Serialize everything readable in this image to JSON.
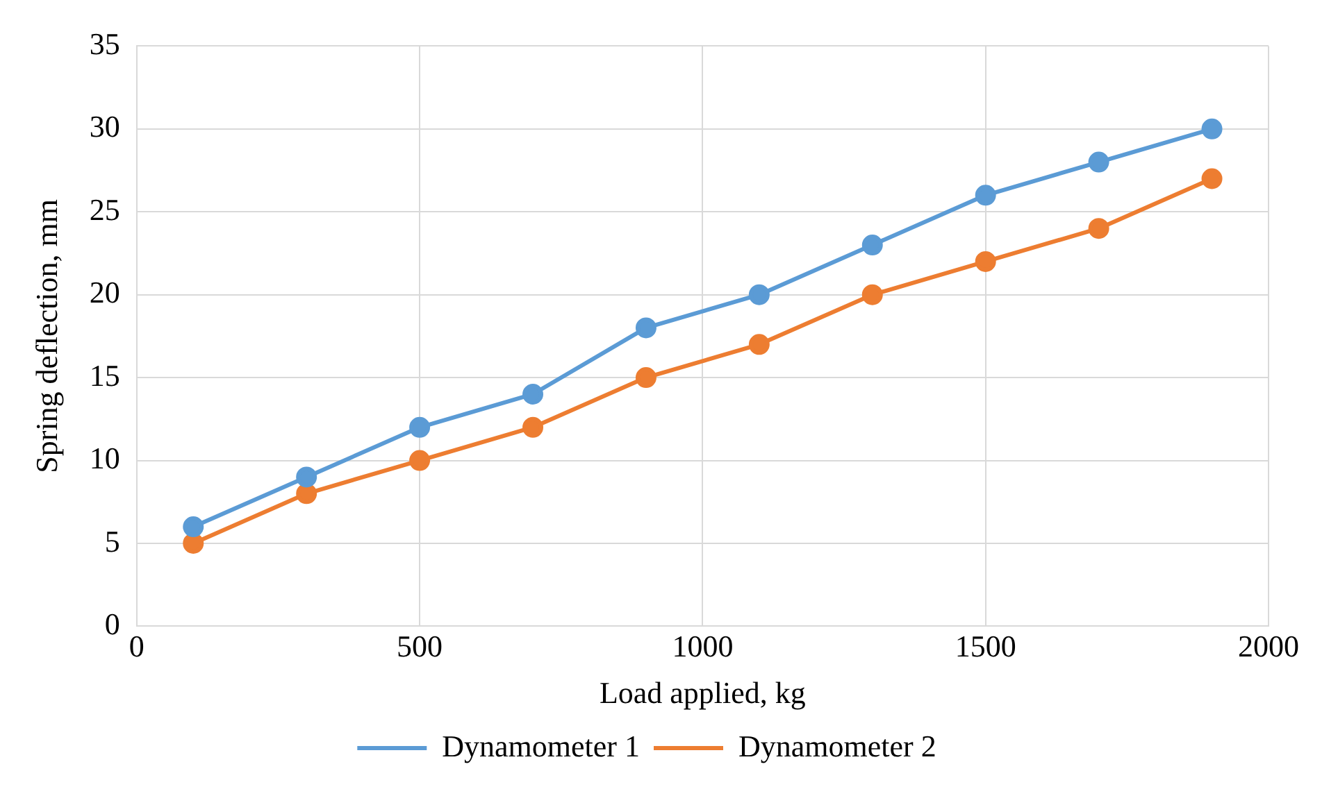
{
  "chart_data": {
    "type": "line",
    "xlabel": "Load applied, kg",
    "ylabel": "Spring deflection, mm",
    "x": [
      100,
      300,
      500,
      700,
      900,
      1100,
      1300,
      1500,
      1700,
      1900
    ],
    "series": [
      {
        "name": "Dynamometer 1",
        "color": "#5b9bd5",
        "values": [
          6,
          9,
          12,
          14,
          18,
          20,
          23,
          26,
          28,
          30
        ]
      },
      {
        "name": "Dynamometer 2",
        "color": "#ed7d31",
        "values": [
          5,
          8,
          10,
          12,
          15,
          17,
          20,
          22,
          24,
          27
        ]
      }
    ],
    "xlim": [
      0,
      2000
    ],
    "xticks": [
      0,
      500,
      1000,
      1500,
      2000
    ],
    "ylim": [
      0,
      35
    ],
    "yticks": [
      0,
      5,
      10,
      15,
      20,
      25,
      30,
      35
    ],
    "grid": true,
    "legend": "bottom",
    "marker": "circle",
    "line_style": "solid"
  }
}
